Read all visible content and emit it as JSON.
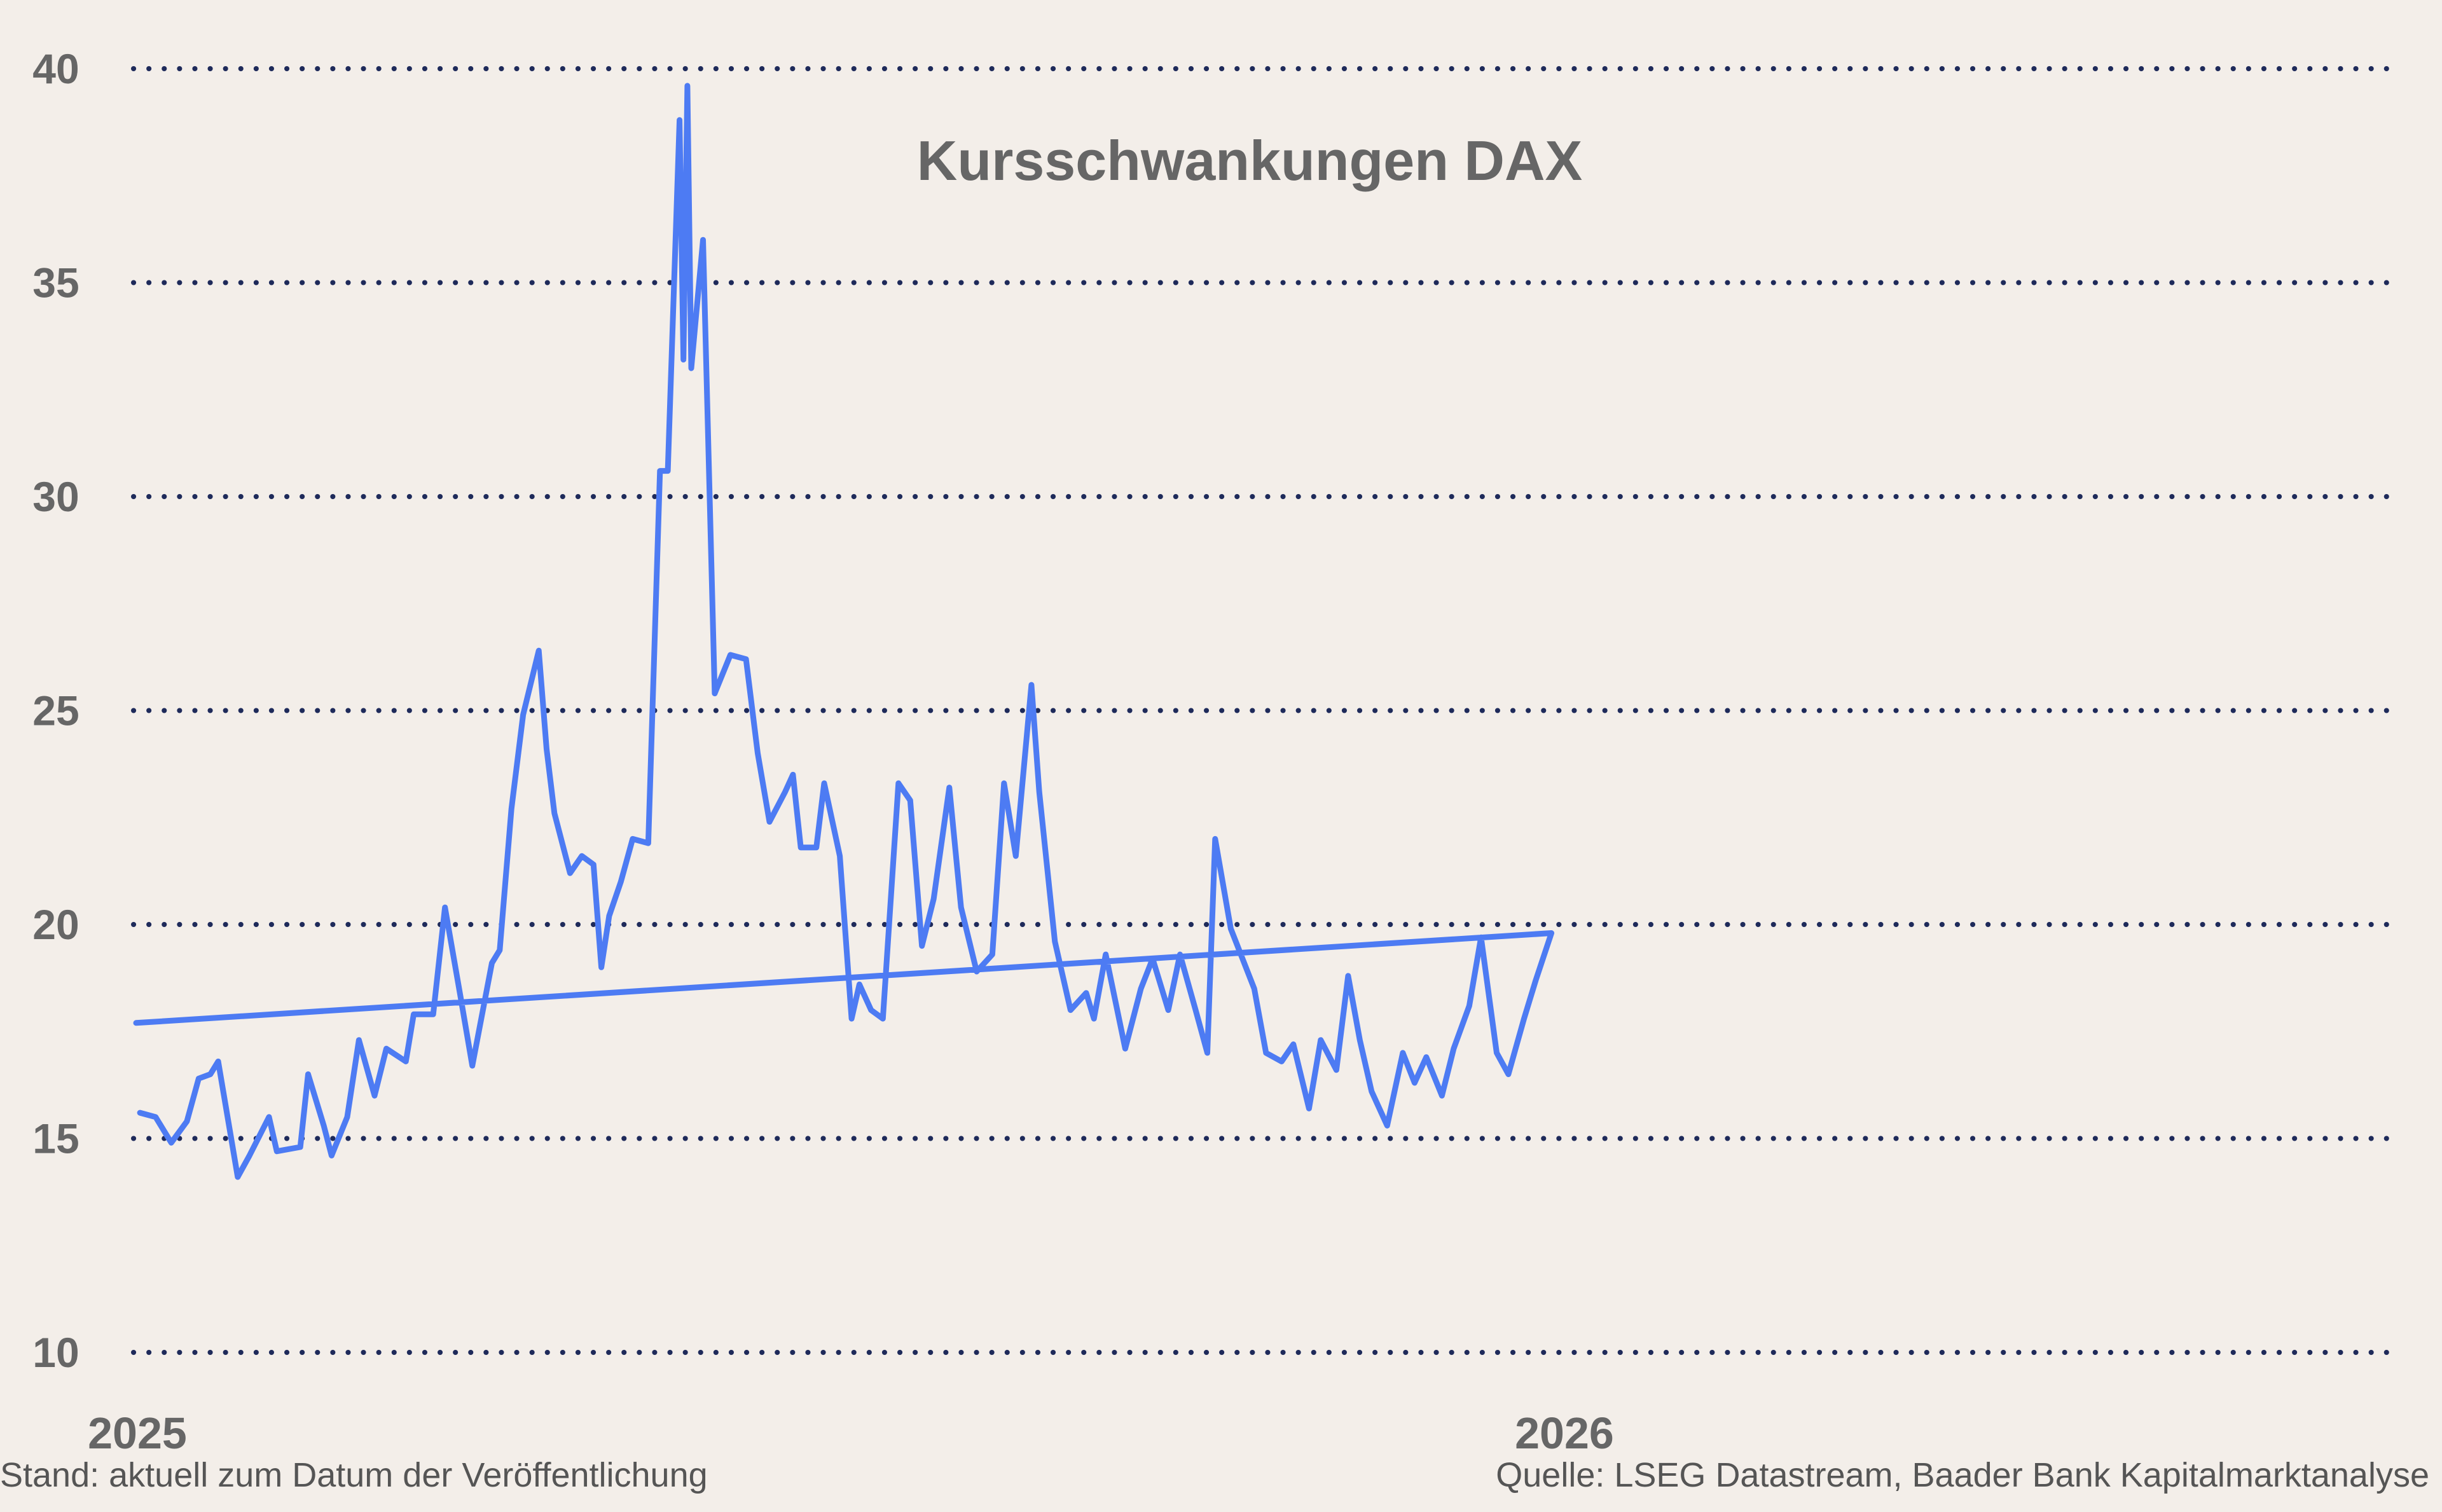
{
  "chart_data": {
    "type": "line",
    "title": "Kursschwankungen DAX",
    "xlabel": "",
    "ylabel": "",
    "ylim": [
      10,
      40
    ],
    "yticks": [
      10,
      15,
      20,
      25,
      30,
      35,
      40
    ],
    "xlim": [
      "2025-01-02",
      "2026-04-30"
    ],
    "xticks": [
      {
        "label": "2025",
        "date": "2025-01-01"
      },
      {
        "label": "2026",
        "date": "2026-01-01"
      }
    ],
    "grid": true,
    "grid_style": "dotted horizontal",
    "legend": false,
    "series": [
      {
        "color": "#4D7BF3",
        "points": [
          [
            "2025-01-02",
            15.6
          ],
          [
            "2025-01-06",
            15.5
          ],
          [
            "2025-01-10",
            14.9
          ],
          [
            "2025-01-14",
            15.4
          ],
          [
            "2025-01-17",
            16.4
          ],
          [
            "2025-01-20",
            16.5
          ],
          [
            "2025-01-22",
            16.8
          ],
          [
            "2025-01-27",
            14.1
          ],
          [
            "2025-01-30",
            14.6
          ],
          [
            "2025-02-04",
            15.5
          ],
          [
            "2025-02-06",
            14.7
          ],
          [
            "2025-02-12",
            14.8
          ],
          [
            "2025-02-14",
            16.5
          ],
          [
            "2025-02-18",
            15.3
          ],
          [
            "2025-02-20",
            14.6
          ],
          [
            "2025-02-24",
            15.5
          ],
          [
            "2025-02-27",
            17.3
          ],
          [
            "2025-03-03",
            16.0
          ],
          [
            "2025-03-06",
            17.1
          ],
          [
            "2025-03-11",
            16.8
          ],
          [
            "2025-03-13",
            17.9
          ],
          [
            "2025-03-18",
            17.9
          ],
          [
            "2025-03-21",
            20.4
          ],
          [
            "2025-03-25",
            18.3
          ],
          [
            "2025-03-28",
            16.7
          ],
          [
            "2025-04-02",
            19.1
          ],
          [
            "2025-04-04",
            19.4
          ],
          [
            "2025-04-07",
            22.7
          ],
          [
            "2025-04-10",
            24.9
          ],
          [
            "2025-04-14",
            26.4
          ],
          [
            "2025-04-16",
            24.1
          ],
          [
            "2025-04-18",
            22.6
          ],
          [
            "2025-04-22",
            21.2
          ],
          [
            "2025-04-25",
            21.6
          ],
          [
            "2025-04-28",
            21.4
          ],
          [
            "2025-04-30",
            19.0
          ],
          [
            "2025-05-02",
            20.2
          ],
          [
            "2025-05-05",
            21.0
          ],
          [
            "2025-05-08",
            22.0
          ],
          [
            "2025-05-12",
            21.9
          ],
          [
            "2025-05-15",
            30.6
          ],
          [
            "2025-05-17",
            30.6
          ],
          [
            "2025-05-20",
            38.8
          ],
          [
            "2025-05-21",
            33.2
          ],
          [
            "2025-05-22",
            39.6
          ],
          [
            "2025-05-23",
            33.0
          ],
          [
            "2025-05-26",
            36.0
          ],
          [
            "2025-05-29",
            25.4
          ],
          [
            "2025-06-02",
            26.3
          ],
          [
            "2025-06-06",
            26.2
          ],
          [
            "2025-06-09",
            24.0
          ],
          [
            "2025-06-12",
            22.4
          ],
          [
            "2025-06-16",
            23.1
          ],
          [
            "2025-06-18",
            23.5
          ],
          [
            "2025-06-20",
            21.8
          ],
          [
            "2025-06-24",
            21.8
          ],
          [
            "2025-06-26",
            23.3
          ],
          [
            "2025-06-30",
            21.6
          ],
          [
            "2025-07-03",
            17.8
          ],
          [
            "2025-07-05",
            18.6
          ],
          [
            "2025-07-08",
            18.0
          ],
          [
            "2025-07-11",
            17.8
          ],
          [
            "2025-07-15",
            23.3
          ],
          [
            "2025-07-18",
            22.9
          ],
          [
            "2025-07-21",
            19.5
          ],
          [
            "2025-07-24",
            20.6
          ],
          [
            "2025-07-28",
            23.2
          ],
          [
            "2025-07-31",
            20.4
          ],
          [
            "2025-08-04",
            18.9
          ],
          [
            "2025-08-08",
            19.3
          ],
          [
            "2025-08-11",
            23.3
          ],
          [
            "2025-08-14",
            21.6
          ],
          [
            "2025-08-18",
            25.6
          ],
          [
            "2025-08-20",
            23.1
          ],
          [
            "2025-08-24",
            19.6
          ],
          [
            "2025-08-28",
            18.0
          ],
          [
            "2025-09-01",
            18.4
          ],
          [
            "2025-09-03",
            17.8
          ],
          [
            "2025-09-06",
            19.3
          ],
          [
            "2025-09-11",
            17.1
          ],
          [
            "2025-09-15",
            18.5
          ],
          [
            "2025-09-18",
            19.2
          ],
          [
            "2025-09-22",
            18.0
          ],
          [
            "2025-09-25",
            19.3
          ],
          [
            "2025-09-29",
            18.0
          ],
          [
            "2025-10-02",
            17.0
          ],
          [
            "2025-10-04",
            22.0
          ],
          [
            "2025-10-08",
            19.9
          ],
          [
            "2025-10-14",
            18.5
          ],
          [
            "2025-10-17",
            17.0
          ],
          [
            "2025-10-21",
            16.8
          ],
          [
            "2025-10-24",
            17.2
          ],
          [
            "2025-10-28",
            15.7
          ],
          [
            "2025-10-31",
            17.3
          ],
          [
            "2025-11-04",
            16.6
          ],
          [
            "2025-11-07",
            18.8
          ],
          [
            "2025-11-10",
            17.3
          ],
          [
            "2025-11-13",
            16.1
          ],
          [
            "2025-11-17",
            15.3
          ],
          [
            "2025-11-21",
            17.0
          ],
          [
            "2025-11-24",
            16.3
          ],
          [
            "2025-11-27",
            16.9
          ],
          [
            "2025-12-01",
            16.0
          ],
          [
            "2025-12-04",
            17.1
          ],
          [
            "2025-12-08",
            18.1
          ],
          [
            "2025-12-11",
            19.7
          ],
          [
            "2025-12-15",
            17.0
          ],
          [
            "2025-12-18",
            16.5
          ],
          [
            "2025-12-22",
            17.8
          ],
          [
            "2025-12-25",
            18.7
          ],
          [
            "2025-12-29",
            19.8
          ],
          [
            "2025-01-01",
            17.7
          ]
        ]
      }
    ],
    "footnote_left": "Stand: aktuell zum Datum der Veröffentlichung",
    "footnote_right": "Quelle: LSEG Datastream, Baader Bank Kapitalmarktanalyse"
  }
}
